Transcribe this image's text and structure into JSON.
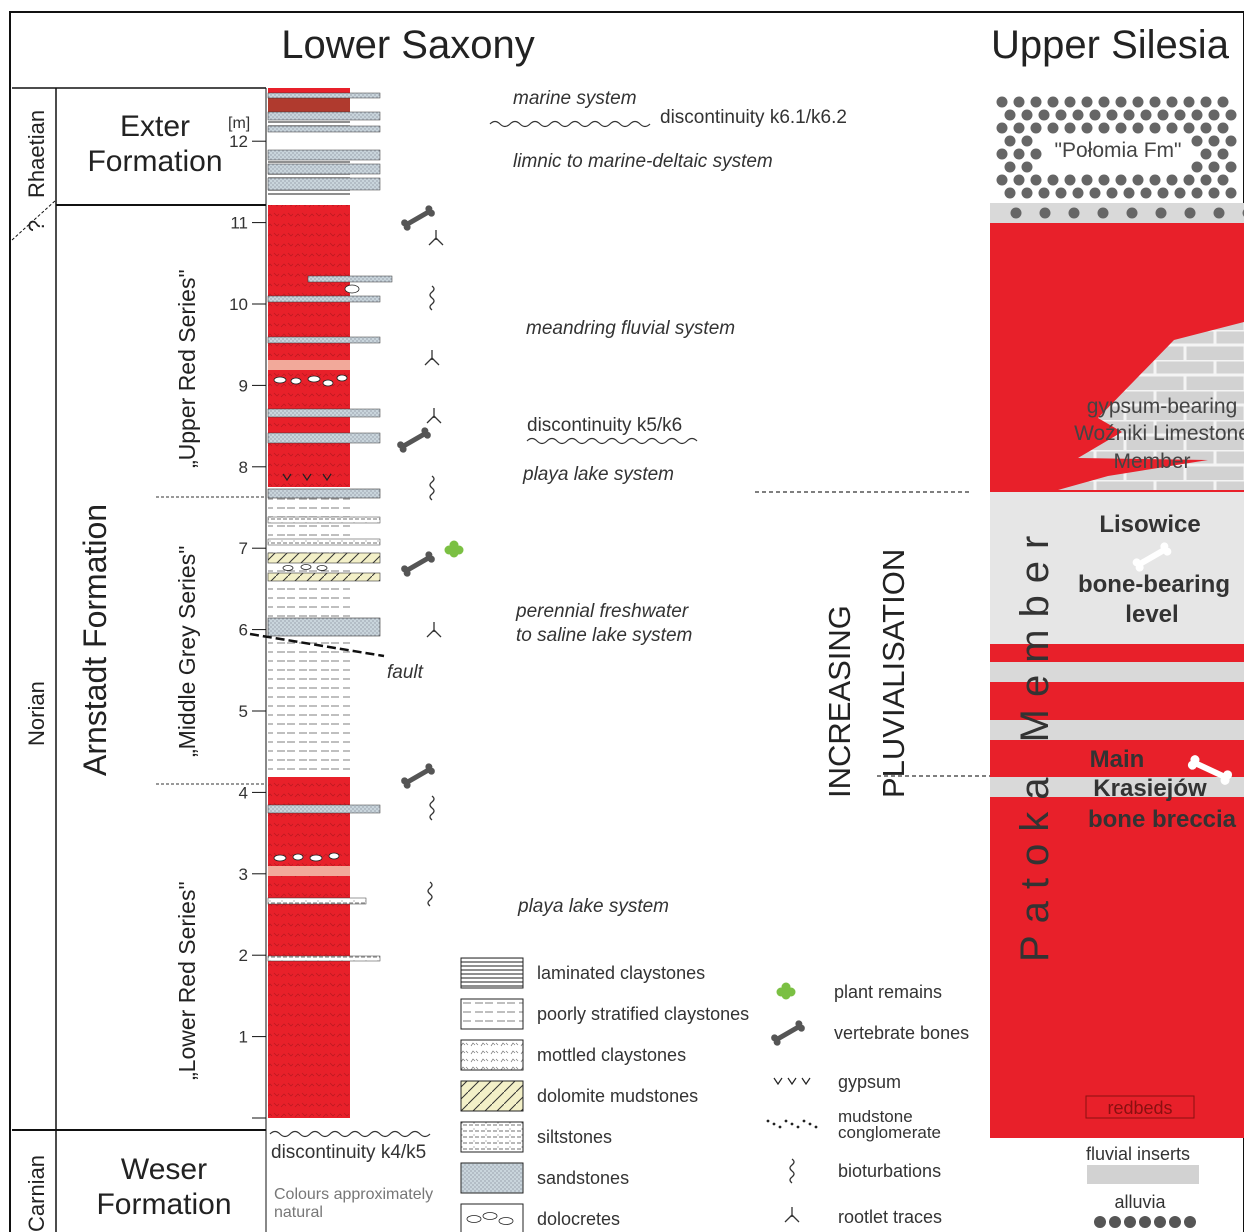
{
  "colors": {
    "red": "#e8202a",
    "grey": "#d9d9d9",
    "light_grey": "#e6e6e6",
    "pink": "#f2a99a",
    "dark_red": "#b03a2e",
    "black": "#1a1a1a",
    "plant_green": "#7bc043",
    "bone_grey": "#555555"
  },
  "headers": {
    "left": "Lower Saxony",
    "right": "Upper Silesia"
  },
  "stages": {
    "rhaetian": "Rhaetian",
    "norian": "Norian",
    "carnian": "Carnian",
    "query": "?"
  },
  "formations": {
    "exter_line1": "Exter",
    "exter_line2": "Formation",
    "arnstadt": "Arnstadt Formation",
    "weser_line1": "Weser",
    "weser_line2": "Formation"
  },
  "series": {
    "upper_red": "„Upper Red Series\"",
    "middle_grey": "„Middle Grey Series\"",
    "lower_red": "„Lower Red Series\""
  },
  "scale": {
    "unit": "[m]",
    "ticks": [
      "1",
      "2",
      "3",
      "4",
      "5",
      "6",
      "7",
      "8",
      "9",
      "10",
      "11",
      "12"
    ]
  },
  "annotations": {
    "marine_system": "marine system",
    "discontinuity_k6": "discontinuity k6.1/k6.2",
    "limnic": "limnic to marine-deltaic system",
    "meandring": "meandring fluvial system",
    "discontinuity_k5k6": "discontinuity k5/k6",
    "playa_upper": "playa lake system",
    "perennial_line1": "perennial freshwater",
    "perennial_line2": "to saline lake system",
    "fault": "fault",
    "playa_lower": "playa lake system",
    "discontinuity_k4k5": "discontinuity k4/k5",
    "colours_line1": "Colours approximately",
    "colours_line2": "natural",
    "increasing": "INCREASING",
    "pluvialisation": "PLUVIALISATION"
  },
  "upper_silesia": {
    "polomia": "\"Połomia Fm\"",
    "gypsum_line1": "gypsum-bearing",
    "gypsum_line2": "Woźniki Limestone",
    "gypsum_line3": "Member",
    "lisowice_line1": "Lisowice",
    "lisowice_line2": "bone-bearing",
    "lisowice_line3": "level",
    "patoka": "Patoka Member",
    "krasiejow_line1": "Main",
    "krasiejow_line2": "Krasiejów",
    "krasiejow_line3": "bone breccia",
    "redbeds": "redbeds",
    "fluvial_inserts": "fluvial inserts",
    "alluvia": "alluvia"
  },
  "legend_lithology": [
    {
      "pattern": "laminated",
      "label": "laminated claystones"
    },
    {
      "pattern": "poorly",
      "label": "poorly stratified claystones"
    },
    {
      "pattern": "mottled",
      "label": "mottled claystones"
    },
    {
      "pattern": "dolomite",
      "label": "dolomite mudstones"
    },
    {
      "pattern": "silt",
      "label": "siltstones"
    },
    {
      "pattern": "sand",
      "label": "sandstones"
    },
    {
      "pattern": "doloc",
      "label": "dolocretes"
    }
  ],
  "legend_symbols": [
    {
      "icon": "plant-icon",
      "label": "plant remains"
    },
    {
      "icon": "bone-icon",
      "label": "vertebrate bones"
    },
    {
      "icon": "gypsum-icon",
      "label": "gypsum"
    },
    {
      "icon": "conglomerate-icon",
      "label": "mudstone conglomerate"
    },
    {
      "icon": "bioturbation-icon",
      "label": "bioturbations"
    },
    {
      "icon": "rootlet-icon",
      "label": "rootlet traces"
    }
  ]
}
